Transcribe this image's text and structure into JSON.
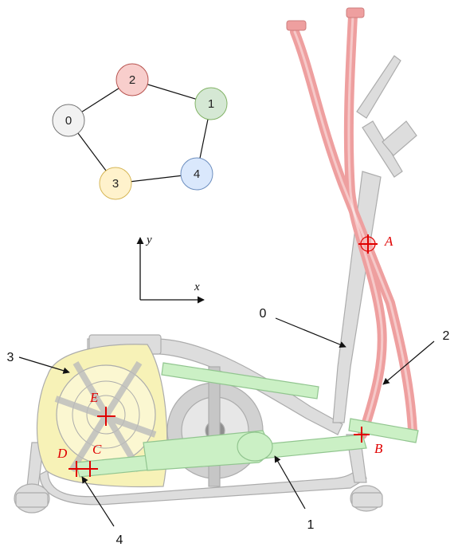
{
  "graph": {
    "nodes": [
      {
        "id": "0",
        "label": "0",
        "color": "#f2f2f2"
      },
      {
        "id": "1",
        "label": "1",
        "color": "#d5e8d4"
      },
      {
        "id": "2",
        "label": "2",
        "color": "#f8cecc"
      },
      {
        "id": "3",
        "label": "3",
        "color": "#fff2cc"
      },
      {
        "id": "4",
        "label": "4",
        "color": "#dae8fc"
      }
    ],
    "edges": [
      [
        "0",
        "2"
      ],
      [
        "2",
        "1"
      ],
      [
        "1",
        "4"
      ],
      [
        "4",
        "3"
      ],
      [
        "3",
        "0"
      ]
    ]
  },
  "axes": {
    "x_label": "x⃗",
    "y_label": "y⃗"
  },
  "points": {
    "A": "A",
    "B": "B",
    "C": "C",
    "D": "D",
    "E": "E"
  },
  "parts": {
    "p0": "0",
    "p1": "1",
    "p2": "2",
    "p3": "3",
    "p4": "4"
  },
  "colors": {
    "frame": "#a8a8a8",
    "handles": "#ee9a9a",
    "bar": "#c9f0c2",
    "wheel": "#f7f2b4",
    "points": "#e00000"
  }
}
